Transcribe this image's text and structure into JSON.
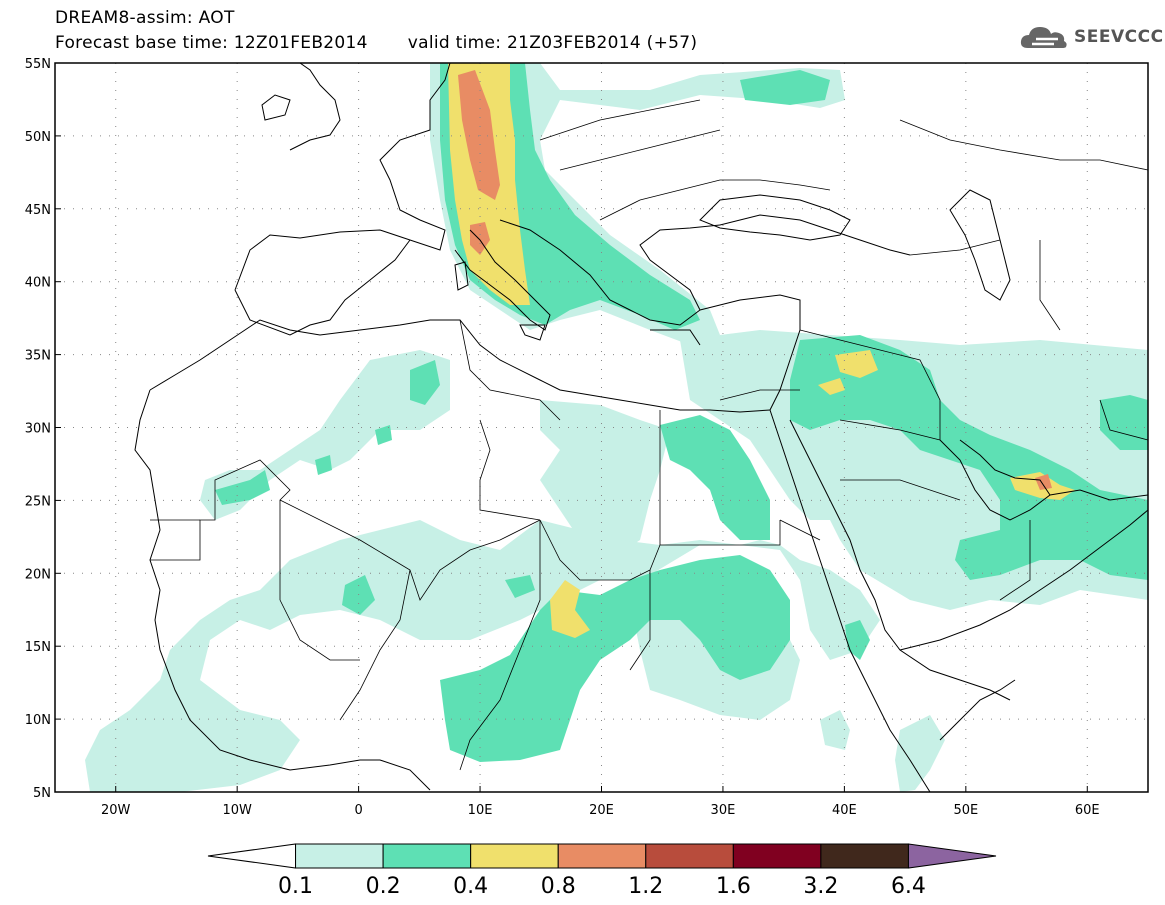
{
  "title": {
    "line1": "DREAM8-assim: AOT",
    "base_time": "Forecast base time: 12Z01FEB2014",
    "valid_time": "valid time: 21Z03FEB2014 (+57)"
  },
  "logo": {
    "text": "SEEVCCC",
    "icon": "cloud-icon"
  },
  "map": {
    "lon_range": [
      -25,
      65
    ],
    "lat_range": [
      5,
      55
    ],
    "lat_ticks": [
      "55N",
      "50N",
      "45N",
      "40N",
      "35N",
      "30N",
      "25N",
      "20N",
      "15N",
      "10N",
      "5N"
    ],
    "lon_ticks": [
      "20W",
      "10W",
      "0",
      "10E",
      "20E",
      "30E",
      "40E",
      "50E",
      "60E"
    ],
    "grid": "dotted"
  },
  "colorbar": {
    "levels": [
      "0.1",
      "0.2",
      "0.4",
      "0.8",
      "1.2",
      "1.6",
      "3.2",
      "6.4"
    ],
    "colors": [
      "#ffffff",
      "#c7f0e6",
      "#5ee0b4",
      "#f0e06c",
      "#e88c64",
      "#b84c3c",
      "#800020",
      "#40281c",
      "#8c64a0"
    ]
  }
}
